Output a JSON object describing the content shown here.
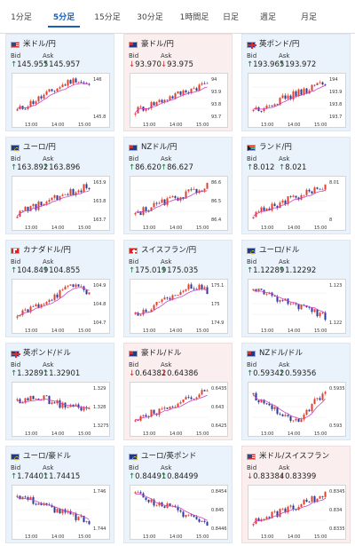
{
  "tabs": [
    "1分足",
    "5分足",
    "15分足",
    "30分足",
    "1時間足",
    "日足",
    "週足",
    "月足"
  ],
  "active_tab": 1,
  "labels": {
    "bid": "Bid",
    "ask": "Ask"
  },
  "colors": {
    "candle_up": "#e0402a",
    "candle_down": "#2a3a9a",
    "ma": "#d040c0",
    "up_arrow": "#1a7a3a",
    "down_arrow": "#c0302a"
  },
  "cards": [
    {
      "pair": "米ドル/円",
      "flag": "us-flag-icon",
      "tone": "blue",
      "dir": "up",
      "bid": "145.955",
      "ask": "145.957",
      "time_labels": [
        "13:00",
        "14:00",
        "15:00"
      ],
      "price_labels": [
        "146",
        "145.8"
      ],
      "trend": "up-then-dip"
    },
    {
      "pair": "豪ドル/円",
      "flag": "au-flag-icon",
      "tone": "pink",
      "dir": "down",
      "bid": "93.970",
      "ask": "93.975",
      "time_labels": [
        "13:00",
        "14:00",
        "15:00"
      ],
      "price_labels": [
        "94",
        "93.9",
        "93.8",
        "93.7"
      ],
      "trend": "up"
    },
    {
      "pair": "英ポンド/円",
      "flag": "gb-flag-icon",
      "tone": "blue",
      "dir": "up",
      "bid": "193.965",
      "ask": "193.972",
      "time_labels": [
        "13:00",
        "14:00",
        "15:00"
      ],
      "price_labels": [
        "194",
        "193.9",
        "193.8",
        "193.7"
      ],
      "trend": "up"
    },
    {
      "pair": "ユーロ/円",
      "flag": "eu-flag-icon",
      "tone": "blue",
      "dir": "up",
      "bid": "163.892",
      "ask": "163.896",
      "time_labels": [
        "13:00",
        "14:00",
        "15:00"
      ],
      "price_labels": [
        "163.9",
        "163.8",
        "163.7"
      ],
      "trend": "up"
    },
    {
      "pair": "NZドル/円",
      "flag": "nz-flag-icon",
      "tone": "blue",
      "dir": "up",
      "bid": "86.620",
      "ask": "86.627",
      "time_labels": [
        "13:00",
        "14:00",
        "15:00"
      ],
      "price_labels": [
        "86.6",
        "86.5",
        "86.4"
      ],
      "trend": "up"
    },
    {
      "pair": "ランド/円",
      "flag": "za-flag-icon",
      "tone": "blue",
      "dir": "up",
      "bid": "8.012",
      "ask": "8.021",
      "time_labels": [
        "13:00",
        "14:00",
        "15:00"
      ],
      "price_labels": [
        "8.01",
        "8"
      ],
      "trend": "up"
    },
    {
      "pair": "カナダドル/円",
      "flag": "ca-flag-icon",
      "tone": "blue",
      "dir": "up",
      "bid": "104.849",
      "ask": "104.855",
      "time_labels": [
        "13:00",
        "14:00",
        "15:00"
      ],
      "price_labels": [
        "104.9",
        "104.8",
        "104.7"
      ],
      "trend": "up-then-dip"
    },
    {
      "pair": "スイスフラン/円",
      "flag": "ch-flag-icon",
      "tone": "blue",
      "dir": "up",
      "bid": "175.019",
      "ask": "175.035",
      "time_labels": [
        "13:00",
        "14:00",
        "15:00"
      ],
      "price_labels": [
        "175.1",
        "175",
        "174.9"
      ],
      "trend": "up-then-dip"
    },
    {
      "pair": "ユーロ/ドル",
      "flag": "eu-flag-icon",
      "tone": "blue",
      "dir": "up",
      "bid": "1.12289",
      "ask": "1.12292",
      "time_labels": [
        "13:00",
        "14:00",
        "15:00"
      ],
      "price_labels": [
        "1.123",
        "1.122"
      ],
      "trend": "down"
    },
    {
      "pair": "英ポンド/ドル",
      "flag": "gb-flag-icon",
      "tone": "blue",
      "dir": "up",
      "bid": "1.32891",
      "ask": "1.32901",
      "time_labels": [
        "13:00",
        "14:00",
        "15:00"
      ],
      "price_labels": [
        "1.329",
        "1.328",
        "1.3275"
      ],
      "trend": "flat-down"
    },
    {
      "pair": "豪ドル/ドル",
      "flag": "au-flag-icon",
      "tone": "pink",
      "dir": "down",
      "bid": "0.64382",
      "ask": "0.64386",
      "time_labels": [
        "13:00",
        "14:00",
        "15:00"
      ],
      "price_labels": [
        "0.6435",
        "0.643",
        "0.6425"
      ],
      "trend": "up"
    },
    {
      "pair": "NZドル/ドル",
      "flag": "nz-flag-icon",
      "tone": "blue",
      "dir": "up",
      "bid": "0.59342",
      "ask": "0.59356",
      "time_labels": [
        "13:00",
        "14:00",
        "15:00"
      ],
      "price_labels": [
        "0.5935",
        "0.593"
      ],
      "trend": "down-then-up"
    },
    {
      "pair": "ユーロ/豪ドル",
      "flag": "eu-flag-icon",
      "tone": "blue",
      "dir": "up",
      "bid": "1.74401",
      "ask": "1.74415",
      "time_labels": [
        "13:00",
        "14:00",
        "15:00"
      ],
      "price_labels": [
        "1.746",
        "1.744"
      ],
      "trend": "down"
    },
    {
      "pair": "ユーロ/英ポンド",
      "flag": "eu-flag-icon",
      "tone": "blue",
      "dir": "up",
      "bid": "0.84491",
      "ask": "0.84499",
      "time_labels": [
        "13:00",
        "14:00",
        "15:00"
      ],
      "price_labels": [
        "0.8454",
        "0.845",
        "0.8446"
      ],
      "trend": "down"
    },
    {
      "pair": "米ドル/スイスフラン",
      "flag": "us-flag-icon",
      "tone": "pink",
      "dir": "down",
      "bid": "0.83384",
      "ask": "0.83399",
      "time_labels": [
        "13:00",
        "14:00",
        "15:00"
      ],
      "price_labels": [
        "0.8345",
        "0.834",
        "0.8335"
      ],
      "trend": "up"
    }
  ]
}
